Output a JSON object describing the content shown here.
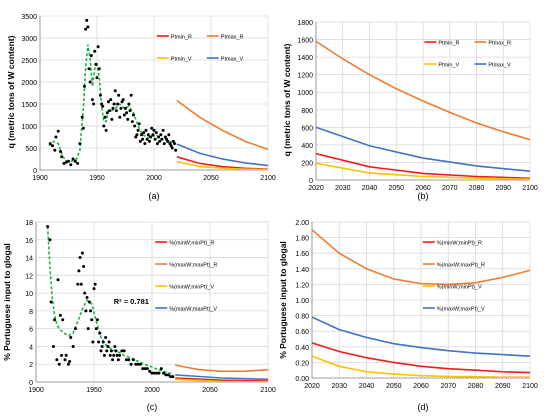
{
  "colors": {
    "R_low": "#ee1c1c",
    "R_high": "#ed7d31",
    "V_low": "#ffc000",
    "V_high": "#4472c4",
    "points": "#000000",
    "smooth": "#22b04c",
    "grid": "#d9d9d9"
  },
  "chart_data": [
    {
      "panel": "(a)",
      "type": "scatter",
      "ylabel": "q (metric tons of W content)",
      "xlim": [
        1900,
        2100
      ],
      "ylim": [
        0,
        3500
      ],
      "xticks": [
        1900,
        1950,
        2000,
        2050,
        2100
      ],
      "yticks": [
        0,
        500,
        1000,
        1500,
        2000,
        2500,
        3000,
        3500
      ],
      "legend": {
        "position": "top-right",
        "entries": [
          "Ptmin_R",
          "Ptmax_R",
          "Ptmin_V",
          "Ptmax_V"
        ]
      },
      "points": {
        "x": [
          1909,
          1911,
          1913,
          1914,
          1916,
          1918,
          1919,
          1921,
          1923,
          1925,
          1927,
          1929,
          1931,
          1933,
          1935,
          1937,
          1938,
          1939,
          1940,
          1941,
          1942,
          1943,
          1944,
          1945,
          1946,
          1947,
          1948,
          1949,
          1950,
          1951,
          1952,
          1953,
          1954,
          1955,
          1956,
          1957,
          1958,
          1959,
          1960,
          1961,
          1962,
          1963,
          1964,
          1965,
          1966,
          1967,
          1968,
          1969,
          1970,
          1971,
          1972,
          1973,
          1974,
          1975,
          1976,
          1977,
          1978,
          1979,
          1980,
          1981,
          1982,
          1983,
          1984,
          1985,
          1986,
          1987,
          1988,
          1989,
          1990,
          1991,
          1992,
          1993,
          1994,
          1995,
          1996,
          1997,
          1998,
          1999,
          2000,
          2001,
          2002,
          2003,
          2004,
          2005,
          2006,
          2007,
          2008,
          2009,
          2010,
          2011,
          2012,
          2013,
          2014,
          2015,
          2016,
          2017,
          2018,
          2019
        ],
        "y": [
          600,
          550,
          450,
          750,
          880,
          420,
          300,
          150,
          180,
          200,
          120,
          250,
          200,
          150,
          600,
          1200,
          950,
          1900,
          3200,
          3400,
          3250,
          2300,
          2000,
          2600,
          1600,
          1500,
          2700,
          2400,
          2100,
          2800,
          2300,
          1700,
          1500,
          1450,
          1000,
          1200,
          900,
          1300,
          1550,
          1350,
          1600,
          1150,
          1400,
          1500,
          1800,
          1350,
          1500,
          1700,
          1200,
          1400,
          1550,
          1600,
          1250,
          1400,
          1300,
          1150,
          1500,
          1350,
          1700,
          1100,
          1250,
          1000,
          750,
          800,
          900,
          1050,
          650,
          800,
          700,
          850,
          600,
          900,
          700,
          800,
          650,
          750,
          950,
          800,
          900,
          700,
          850,
          600,
          750,
          650,
          800,
          700,
          900,
          600,
          750,
          700,
          650,
          800,
          600,
          550,
          500,
          650,
          600,
          450
        ]
      },
      "smooth": {
        "x": [
          1908,
          1912,
          1916,
          1920,
          1924,
          1928,
          1932,
          1935,
          1938,
          1940,
          1942,
          1944,
          1946,
          1948,
          1950,
          1952,
          1954,
          1956,
          1958,
          1960,
          1963,
          1966,
          1970,
          1974,
          1978,
          1982,
          1986,
          1990,
          1994,
          1998,
          2002,
          2006,
          2010,
          2014,
          2019
        ],
        "y": [
          550,
          650,
          600,
          300,
          200,
          200,
          250,
          450,
          1400,
          2300,
          2850,
          2500,
          1900,
          2300,
          2400,
          2100,
          1450,
          1100,
          1100,
          1350,
          1350,
          1400,
          1500,
          1400,
          1450,
          1300,
          1000,
          800,
          750,
          750,
          800,
          700,
          700,
          650,
          600
        ]
      },
      "series": [
        {
          "name": "Ptmin_R",
          "x": [
            2020,
            2040,
            2060,
            2080,
            2100
          ],
          "y": [
            300,
            150,
            75,
            40,
            20
          ]
        },
        {
          "name": "Ptmax_R",
          "x": [
            2020,
            2040,
            2060,
            2080,
            2100
          ],
          "y": [
            1580,
            1200,
            900,
            650,
            470
          ]
        },
        {
          "name": "Ptmin_V",
          "x": [
            2020,
            2040,
            2060,
            2080,
            2100
          ],
          "y": [
            190,
            80,
            40,
            20,
            10
          ]
        },
        {
          "name": "Ptmax_V",
          "x": [
            2020,
            2040,
            2060,
            2080,
            2100
          ],
          "y": [
            590,
            380,
            250,
            160,
            100
          ]
        }
      ]
    },
    {
      "panel": "(b)",
      "type": "line",
      "ylabel": "q (metric tons of W content)",
      "xlim": [
        2020,
        2100
      ],
      "ylim": [
        0,
        1800
      ],
      "xticks": [
        2020,
        2030,
        2040,
        2050,
        2060,
        2070,
        2080,
        2090,
        2100
      ],
      "yticks": [
        0,
        200,
        400,
        600,
        800,
        1000,
        1200,
        1400,
        1600,
        1800
      ],
      "legend": {
        "position": "top-right",
        "entries": [
          "Ptmin_R",
          "Ptmax_R",
          "Ptmin_V",
          "Ptmax_V"
        ]
      },
      "series": [
        {
          "name": "Ptmin_R",
          "x": [
            2020,
            2040,
            2060,
            2080,
            2100
          ],
          "y": [
            300,
            150,
            75,
            40,
            20
          ]
        },
        {
          "name": "Ptmax_R",
          "x": [
            2020,
            2030,
            2040,
            2050,
            2060,
            2070,
            2080,
            2090,
            2100
          ],
          "y": [
            1580,
            1380,
            1200,
            1040,
            900,
            770,
            650,
            550,
            460
          ]
        },
        {
          "name": "Ptmin_V",
          "x": [
            2020,
            2040,
            2060,
            2080,
            2100
          ],
          "y": [
            190,
            80,
            40,
            20,
            10
          ]
        },
        {
          "name": "Ptmax_V",
          "x": [
            2020,
            2040,
            2060,
            2080,
            2100
          ],
          "y": [
            600,
            390,
            250,
            160,
            100
          ]
        }
      ]
    },
    {
      "panel": "(c)",
      "type": "scatter",
      "ylabel": "% Portuguese input to glogal",
      "xlim": [
        1900,
        2100
      ],
      "ylim": [
        0,
        18
      ],
      "xticks": [
        1900,
        1950,
        2000,
        2050,
        2100
      ],
      "yticks": [
        0,
        2,
        4,
        6,
        8,
        10,
        12,
        14,
        16,
        18
      ],
      "annotation": "R² = 0.781",
      "legend": {
        "position": "top-right",
        "entries": [
          "%(minW;minPt)_R",
          "%(maxW;maxPt)_R",
          "%(minW;minPt)_V",
          "%(maxW;maxPt)_V"
        ]
      },
      "points": {
        "x": [
          1910,
          1912,
          1913,
          1915,
          1916,
          1918,
          1919,
          1920,
          1921,
          1922,
          1923,
          1925,
          1926,
          1928,
          1929,
          1930,
          1932,
          1934,
          1936,
          1937,
          1938,
          1939,
          1940,
          1941,
          1942,
          1943,
          1944,
          1945,
          1946,
          1947,
          1948,
          1949,
          1950,
          1951,
          1952,
          1953,
          1954,
          1955,
          1956,
          1957,
          1958,
          1959,
          1960,
          1961,
          1962,
          1963,
          1964,
          1965,
          1966,
          1967,
          1968,
          1969,
          1970,
          1971,
          1972,
          1974,
          1976,
          1978,
          1980,
          1982,
          1984,
          1986,
          1988,
          1990,
          1992,
          1994,
          1996,
          1998,
          2000,
          2002,
          2004,
          2006,
          2008,
          2010,
          2012,
          2014,
          2016,
          2018
        ],
        "y": [
          17.5,
          16,
          9,
          4,
          7,
          2.5,
          11.5,
          2,
          7.5,
          3,
          7,
          2.5,
          3,
          2,
          2.3,
          5,
          4,
          6,
          11,
          12.5,
          14,
          11,
          14.5,
          13,
          10,
          8,
          9.5,
          6,
          9,
          8,
          7,
          4.5,
          10.5,
          11,
          6,
          7,
          4.5,
          5.5,
          3.5,
          4,
          4.5,
          3,
          5,
          3.5,
          4,
          4.5,
          3,
          3.5,
          2.5,
          3,
          4,
          3.5,
          3,
          2.5,
          3,
          3.5,
          3.5,
          2.5,
          2.5,
          2,
          2.5,
          2,
          2,
          2,
          1.5,
          1.5,
          1.5,
          1.2,
          1,
          1,
          1,
          1,
          1.5,
          1,
          0.8,
          0.8,
          0.6,
          0.6
        ]
      },
      "smooth": {
        "x": [
          1910,
          1912,
          1914,
          1916,
          1918,
          1920,
          1924,
          1928,
          1932,
          1936,
          1940,
          1944,
          1948,
          1952,
          1956,
          1960,
          1964,
          1968,
          1972,
          1976,
          1980,
          1985,
          1990,
          1995,
          2000,
          2005,
          2010,
          2015,
          2018
        ],
        "y": [
          17.5,
          13,
          9.5,
          7.5,
          6.5,
          6,
          5.5,
          5.2,
          5.5,
          6.8,
          8.2,
          9.2,
          8.8,
          6.8,
          5,
          4.2,
          3.8,
          3.5,
          3.3,
          3,
          2.8,
          2.5,
          2.2,
          1.9,
          1.7,
          1.4,
          1.2,
          1.0,
          0.9
        ]
      },
      "series": [
        {
          "name": "%(minW;minPt)_R",
          "x": [
            2020,
            2060,
            2100
          ],
          "y": [
            0.45,
            0.2,
            0.1
          ]
        },
        {
          "name": "%(maxW;maxPt)_R",
          "x": [
            2020,
            2040,
            2060,
            2080,
            2100
          ],
          "y": [
            1.9,
            1.4,
            1.2,
            1.22,
            1.38
          ]
        },
        {
          "name": "%(minW;minPt)_V",
          "x": [
            2020,
            2060,
            2100
          ],
          "y": [
            0.3,
            0.05,
            0.02
          ]
        },
        {
          "name": "%(maxW;maxPt)_V",
          "x": [
            2020,
            2060,
            2100
          ],
          "y": [
            0.8,
            0.45,
            0.3
          ]
        }
      ]
    },
    {
      "panel": "(d)",
      "type": "line",
      "ylabel": "% Portuguese input to glogal",
      "xlim": [
        2020,
        2100
      ],
      "ylim": [
        0,
        2.0
      ],
      "xticks": [
        2020,
        2030,
        2040,
        2050,
        2060,
        2070,
        2080,
        2090,
        2100
      ],
      "yticks": [
        0,
        0.2,
        0.4,
        0.6,
        0.8,
        1.0,
        1.2,
        1.4,
        1.6,
        1.8,
        2.0
      ],
      "legend": {
        "position": "top-right",
        "entries": [
          "%(minW;minPt)_R",
          "%(maxW;maxPt)_R",
          "%(minW;minPt)_V",
          "%(maxW;maxPt)_V"
        ]
      },
      "series": [
        {
          "name": "%(minW;minPt)_R",
          "x": [
            2020,
            2030,
            2040,
            2050,
            2060,
            2070,
            2080,
            2090,
            2100
          ],
          "y": [
            0.45,
            0.34,
            0.26,
            0.2,
            0.15,
            0.12,
            0.1,
            0.08,
            0.07
          ]
        },
        {
          "name": "%(maxW;maxPt)_R",
          "x": [
            2020,
            2030,
            2040,
            2050,
            2060,
            2070,
            2080,
            2090,
            2100
          ],
          "y": [
            1.9,
            1.6,
            1.4,
            1.27,
            1.21,
            1.2,
            1.22,
            1.29,
            1.38
          ]
        },
        {
          "name": "%(minW;minPt)_V",
          "x": [
            2020,
            2030,
            2040,
            2050,
            2060,
            2070,
            2080,
            2090,
            2100
          ],
          "y": [
            0.28,
            0.15,
            0.08,
            0.05,
            0.03,
            0.02,
            0.015,
            0.01,
            0.01
          ]
        },
        {
          "name": "%(maxW;maxPt)_V",
          "x": [
            2020,
            2030,
            2040,
            2050,
            2060,
            2070,
            2080,
            2090,
            2100
          ],
          "y": [
            0.78,
            0.62,
            0.52,
            0.44,
            0.39,
            0.35,
            0.32,
            0.3,
            0.28
          ]
        }
      ]
    }
  ]
}
